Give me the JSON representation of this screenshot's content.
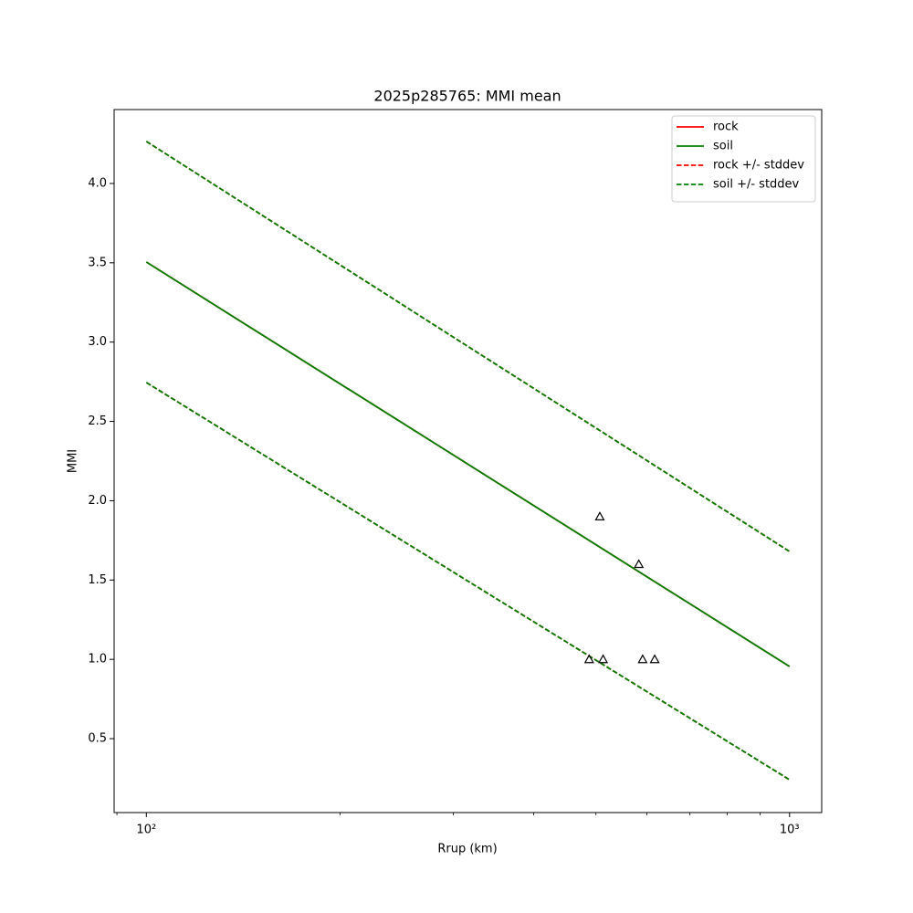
{
  "chart_data": {
    "type": "line",
    "title": "2025p285765: MMI mean",
    "xlabel": "Rrup (km)",
    "ylabel": "MMI",
    "xscale": "log",
    "xlim": [
      89.1,
      1122
    ],
    "ylim": [
      0.034,
      4.466
    ],
    "xticks": [
      {
        "value": 100,
        "label": "10²"
      },
      {
        "value": 1000,
        "label": "10³"
      }
    ],
    "xminorticks": [
      90,
      200,
      300,
      400,
      500,
      600,
      700,
      800,
      900
    ],
    "yticks": [
      0.5,
      {
        "value": 1,
        "label": "1.0"
      },
      1.5,
      {
        "value": 2,
        "label": "2.0"
      },
      2.5,
      {
        "value": 3,
        "label": "3.0"
      },
      3.5,
      {
        "value": 4,
        "label": "4.0"
      }
    ],
    "legend": "upper right",
    "x": [
      100,
      1000
    ],
    "series": [
      {
        "name": "rock",
        "color": "#ff0000",
        "style": "solid",
        "values": [
          3.505,
          0.955
        ]
      },
      {
        "name": "soil",
        "color": "#008000",
        "style": "solid",
        "values": [
          3.505,
          0.955
        ]
      },
      {
        "name": "rock +/- stddev",
        "color": "#ff0000",
        "style": "dashed",
        "upper": [
          4.265,
          1.68
        ],
        "lower": [
          2.745,
          0.241
        ]
      },
      {
        "name": "soil +/- stddev",
        "color": "#008000",
        "style": "dashed",
        "upper": [
          4.265,
          1.68
        ],
        "lower": [
          2.745,
          0.241
        ]
      }
    ],
    "points": {
      "color": "#000000",
      "marker": "triangle",
      "x": [
        488,
        513,
        507,
        583,
        591,
        617
      ],
      "y": [
        1.0,
        1.0,
        1.9,
        1.6,
        1.0,
        1.0
      ]
    }
  }
}
